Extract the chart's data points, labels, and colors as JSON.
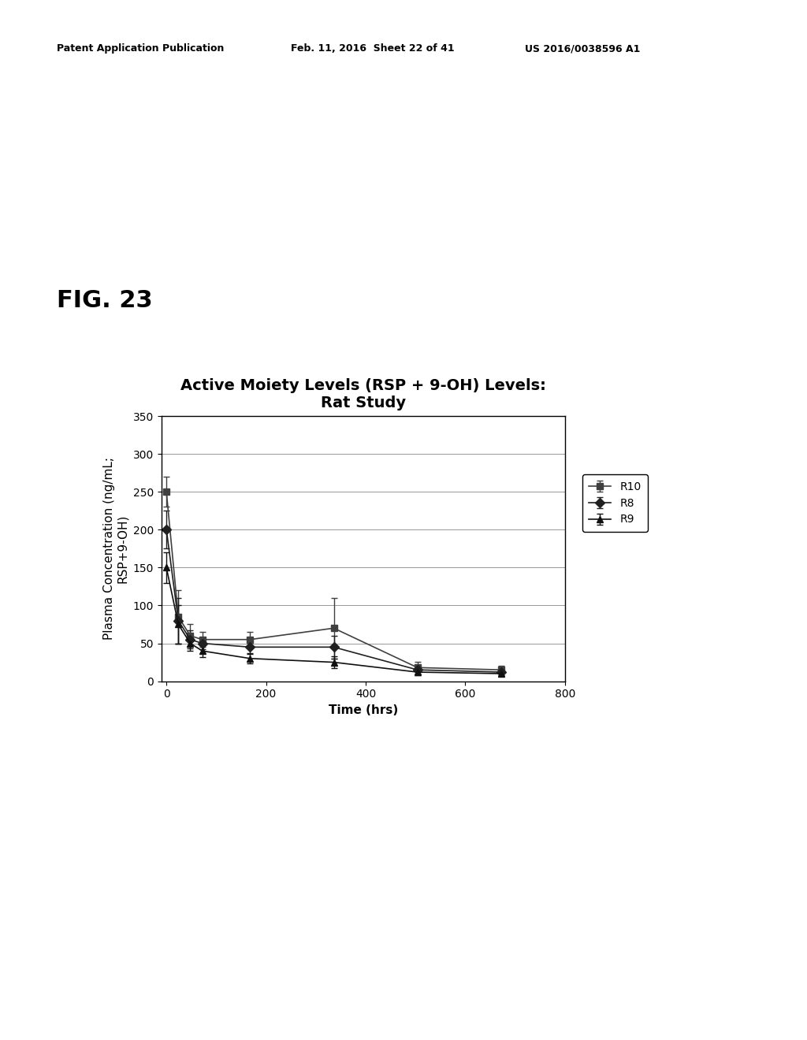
{
  "title_line1": "Active Moiety Levels (RSP + 9-OH) Levels:",
  "title_line2": "Rat Study",
  "xlabel": "Time (hrs)",
  "ylabel": "Plasma Concentration (ng/mL;\nRSP+9-OH)",
  "xlim": [
    -10,
    800
  ],
  "ylim": [
    0.0,
    350.0
  ],
  "yticks": [
    0.0,
    50.0,
    100.0,
    150.0,
    200.0,
    250.0,
    300.0,
    350.0
  ],
  "xticks": [
    0,
    200,
    400,
    600,
    800
  ],
  "header_left": "Patent Application Publication",
  "header_mid": "Feb. 11, 2016  Sheet 22 of 41",
  "header_right": "US 2016/0038596 A1",
  "fig_label": "FIG. 23",
  "R10": {
    "x": [
      0,
      24,
      48,
      72,
      168,
      336,
      504,
      672
    ],
    "y": [
      250,
      85,
      60,
      55,
      55,
      70,
      18,
      15
    ],
    "yerr": [
      20,
      35,
      15,
      10,
      10,
      40,
      8,
      5
    ],
    "label": "R10",
    "marker": "s",
    "color": "#404040"
  },
  "R8": {
    "x": [
      0,
      24,
      48,
      72,
      168,
      336,
      504,
      672
    ],
    "y": [
      200,
      80,
      55,
      50,
      45,
      45,
      15,
      12
    ],
    "yerr": [
      25,
      30,
      12,
      8,
      8,
      15,
      5,
      4
    ],
    "label": "R8",
    "marker": "D",
    "color": "#202020"
  },
  "R9": {
    "x": [
      0,
      24,
      48,
      72,
      168,
      336,
      504,
      672
    ],
    "y": [
      150,
      75,
      50,
      40,
      30,
      25,
      12,
      10
    ],
    "yerr": [
      20,
      25,
      10,
      8,
      6,
      8,
      4,
      3
    ],
    "label": "R9",
    "marker": "^",
    "color": "#101010"
  },
  "background_color": "#ffffff",
  "plot_bg_color": "#ffffff",
  "grid_color": "#888888",
  "title_fontsize": 14,
  "axis_label_fontsize": 11,
  "tick_fontsize": 10,
  "legend_fontsize": 10
}
